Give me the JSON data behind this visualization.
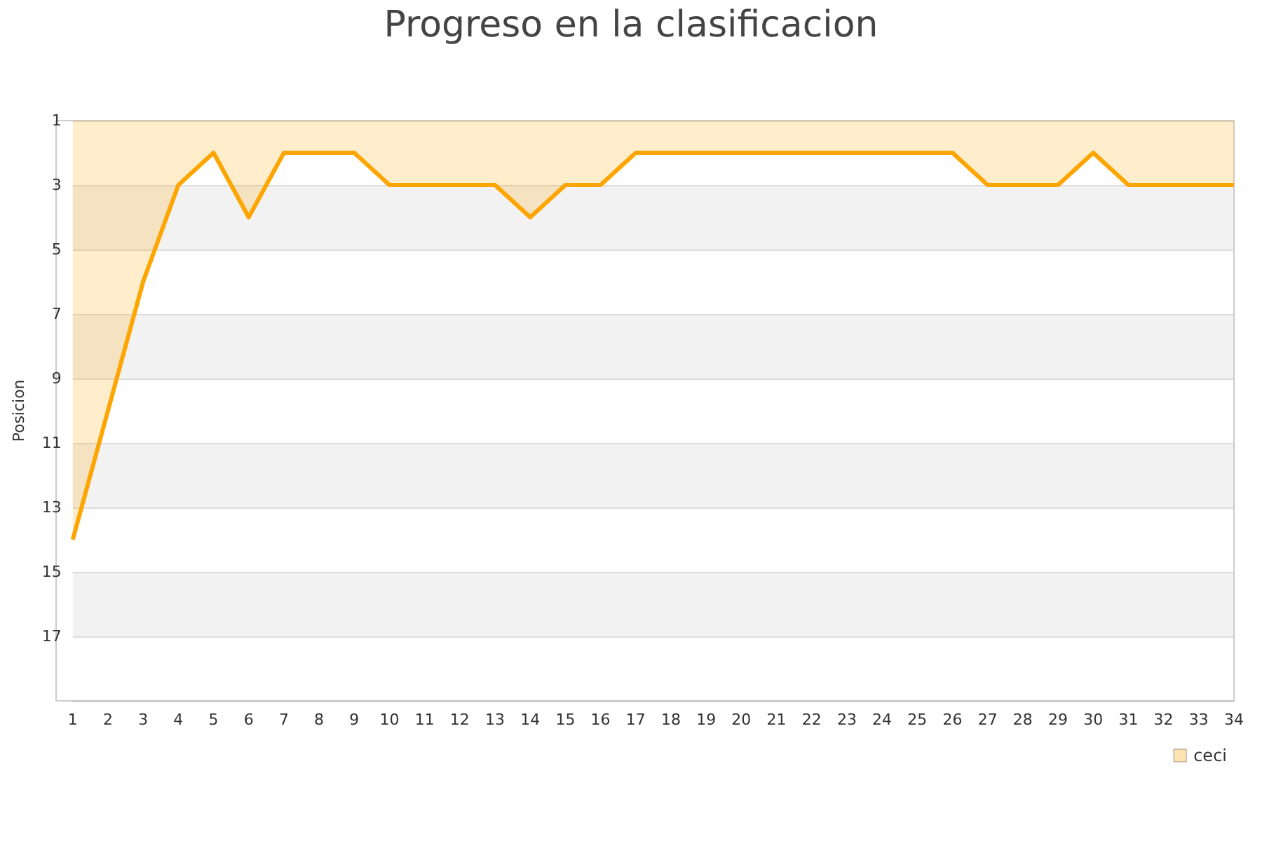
{
  "chart_data": {
    "type": "area",
    "title": "Progreso en la clasificacion",
    "ylabel": "Posicion",
    "x": [
      1,
      2,
      3,
      4,
      5,
      6,
      7,
      8,
      9,
      10,
      11,
      12,
      13,
      14,
      15,
      16,
      17,
      18,
      19,
      20,
      21,
      22,
      23,
      24,
      25,
      26,
      27,
      28,
      29,
      30,
      31,
      32,
      33,
      34
    ],
    "series": [
      {
        "name": "ceci",
        "color": "#ffa500",
        "values": [
          14,
          10,
          6,
          3,
          2,
          4,
          2,
          2,
          2,
          3,
          3,
          3,
          3,
          4,
          3,
          3,
          2,
          2,
          2,
          2,
          2,
          2,
          2,
          2,
          2,
          2,
          3,
          3,
          3,
          2,
          3,
          3,
          3,
          3
        ]
      }
    ],
    "xlim": [
      1,
      34
    ],
    "xticks": [
      1,
      2,
      3,
      4,
      5,
      6,
      7,
      8,
      9,
      10,
      11,
      12,
      13,
      14,
      15,
      16,
      17,
      18,
      19,
      20,
      21,
      22,
      23,
      24,
      25,
      26,
      27,
      28,
      29,
      30,
      31,
      32,
      33,
      34
    ],
    "ylim": [
      19,
      1
    ],
    "yticks": [
      1,
      3,
      5,
      7,
      9,
      11,
      13,
      15,
      17
    ],
    "grid": "y",
    "legend": "bottom right",
    "marker": "none",
    "line_style": "solid"
  }
}
